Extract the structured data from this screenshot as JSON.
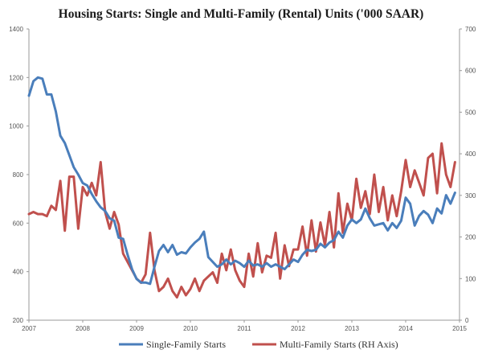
{
  "chart_data": {
    "type": "line",
    "title": "Housing Starts: Single and Multi-Family (Rental) Units  ('000 SAAR)",
    "xlabel": "",
    "ylabel": "",
    "x_range": [
      2007,
      2015
    ],
    "x_ticks": [
      "2007",
      "2008",
      "2009",
      "2010",
      "2011",
      "2012",
      "2013",
      "2014",
      "2015"
    ],
    "left_axis": {
      "range": [
        200,
        1400
      ],
      "ticks": [
        "200",
        "400",
        "600",
        "800",
        "1000",
        "1200",
        "1400"
      ]
    },
    "right_axis": {
      "range": [
        0,
        700
      ],
      "ticks": [
        "0",
        "100",
        "200",
        "300",
        "400",
        "500",
        "600",
        "700"
      ]
    },
    "grid": false,
    "legend_position": "bottom",
    "series": [
      {
        "name": "Single-Family Starts",
        "color": "#4a7ebb",
        "axis": "left",
        "x": [
          2007.0,
          2007.083,
          2007.167,
          2007.25,
          2007.333,
          2007.417,
          2007.5,
          2007.583,
          2007.667,
          2007.75,
          2007.833,
          2007.917,
          2008.0,
          2008.083,
          2008.167,
          2008.25,
          2008.333,
          2008.417,
          2008.5,
          2008.583,
          2008.667,
          2008.75,
          2008.833,
          2008.917,
          2009.0,
          2009.083,
          2009.167,
          2009.25,
          2009.333,
          2009.417,
          2009.5,
          2009.583,
          2009.667,
          2009.75,
          2009.833,
          2009.917,
          2010.0,
          2010.083,
          2010.167,
          2010.25,
          2010.333,
          2010.417,
          2010.5,
          2010.583,
          2010.667,
          2010.75,
          2010.833,
          2010.917,
          2011.0,
          2011.083,
          2011.167,
          2011.25,
          2011.333,
          2011.417,
          2011.5,
          2011.583,
          2011.667,
          2011.75,
          2011.833,
          2011.917,
          2012.0,
          2012.083,
          2012.167,
          2012.25,
          2012.333,
          2012.417,
          2012.5,
          2012.583,
          2012.667,
          2012.75,
          2012.833,
          2012.917,
          2013.0,
          2013.083,
          2013.167,
          2013.25,
          2013.333,
          2013.417,
          2013.5,
          2013.583,
          2013.667,
          2013.75,
          2013.833,
          2013.917,
          2014.0,
          2014.083,
          2014.167,
          2014.25,
          2014.333,
          2014.417,
          2014.5,
          2014.583,
          2014.667,
          2014.75,
          2014.833,
          2014.917
        ],
        "values": [
          1125,
          1185,
          1200,
          1195,
          1130,
          1130,
          1060,
          960,
          930,
          880,
          830,
          800,
          765,
          755,
          720,
          690,
          665,
          650,
          620,
          610,
          540,
          535,
          470,
          410,
          370,
          355,
          355,
          350,
          420,
          485,
          510,
          480,
          510,
          470,
          480,
          475,
          500,
          520,
          535,
          565,
          460,
          440,
          420,
          430,
          450,
          430,
          445,
          435,
          420,
          445,
          425,
          430,
          420,
          435,
          420,
          430,
          420,
          410,
          430,
          450,
          440,
          470,
          490,
          485,
          490,
          515,
          500,
          520,
          530,
          565,
          540,
          590,
          615,
          600,
          615,
          660,
          620,
          590,
          595,
          600,
          570,
          600,
          580,
          610,
          705,
          680,
          590,
          630,
          650,
          635,
          600,
          660,
          640,
          715,
          680,
          725
        ]
      },
      {
        "name": "Multi-Family Starts (RH Axis)",
        "color": "#c0504d",
        "axis": "right",
        "x": [
          2007.0,
          2007.083,
          2007.167,
          2007.25,
          2007.333,
          2007.417,
          2007.5,
          2007.583,
          2007.667,
          2007.75,
          2007.833,
          2007.917,
          2008.0,
          2008.083,
          2008.167,
          2008.25,
          2008.333,
          2008.417,
          2008.5,
          2008.583,
          2008.667,
          2008.75,
          2008.833,
          2008.917,
          2009.0,
          2009.083,
          2009.167,
          2009.25,
          2009.333,
          2009.417,
          2009.5,
          2009.583,
          2009.667,
          2009.75,
          2009.833,
          2009.917,
          2010.0,
          2010.083,
          2010.167,
          2010.25,
          2010.333,
          2010.417,
          2010.5,
          2010.583,
          2010.667,
          2010.75,
          2010.833,
          2010.917,
          2011.0,
          2011.083,
          2011.167,
          2011.25,
          2011.333,
          2011.417,
          2011.5,
          2011.583,
          2011.667,
          2011.75,
          2011.833,
          2011.917,
          2012.0,
          2012.083,
          2012.167,
          2012.25,
          2012.333,
          2012.417,
          2012.5,
          2012.583,
          2012.667,
          2012.75,
          2012.833,
          2012.917,
          2013.0,
          2013.083,
          2013.167,
          2013.25,
          2013.333,
          2013.417,
          2013.5,
          2013.583,
          2013.667,
          2013.75,
          2013.833,
          2013.917,
          2014.0,
          2014.083,
          2014.167,
          2014.25,
          2014.333,
          2014.417,
          2014.5,
          2014.583,
          2014.667,
          2014.75,
          2014.833,
          2014.917
        ],
        "values": [
          255,
          260,
          255,
          255,
          250,
          275,
          265,
          335,
          215,
          345,
          345,
          220,
          320,
          300,
          330,
          300,
          380,
          260,
          220,
          260,
          230,
          160,
          140,
          120,
          100,
          90,
          110,
          210,
          120,
          70,
          80,
          100,
          70,
          55,
          80,
          60,
          75,
          100,
          70,
          95,
          105,
          115,
          90,
          160,
          120,
          170,
          120,
          95,
          80,
          160,
          105,
          185,
          115,
          155,
          150,
          210,
          100,
          180,
          130,
          170,
          170,
          225,
          155,
          240,
          165,
          235,
          180,
          260,
          175,
          305,
          210,
          280,
          240,
          340,
          270,
          310,
          255,
          350,
          260,
          320,
          240,
          300,
          250,
          310,
          385,
          320,
          360,
          330,
          300,
          390,
          400,
          305,
          425,
          350,
          320,
          380
        ]
      }
    ]
  }
}
